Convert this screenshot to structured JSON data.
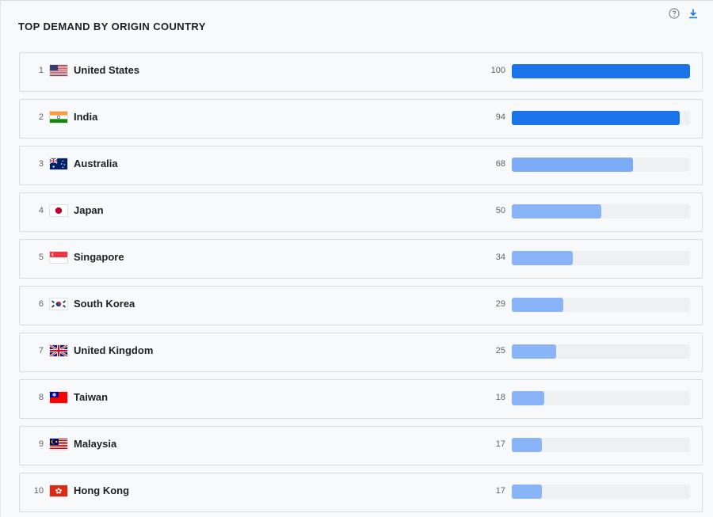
{
  "header": {
    "title": "TOP DEMAND BY ORIGIN COUNTRY",
    "help_icon": "question-circle-icon",
    "download_icon": "download-icon"
  },
  "max_value": 100,
  "colors": {
    "track": "#eff0f2",
    "bar_strong": "#1a73e8",
    "bar_medium": "#7baaf7",
    "bar_light": "#8ab4f8"
  },
  "rows": [
    {
      "rank": "1",
      "country": "United States",
      "flag": "us",
      "value": 100
    },
    {
      "rank": "2",
      "country": "India",
      "flag": "in",
      "value": 94
    },
    {
      "rank": "3",
      "country": "Australia",
      "flag": "au",
      "value": 68
    },
    {
      "rank": "4",
      "country": "Japan",
      "flag": "jp",
      "value": 50
    },
    {
      "rank": "5",
      "country": "Singapore",
      "flag": "sg",
      "value": 34
    },
    {
      "rank": "6",
      "country": "South Korea",
      "flag": "kr",
      "value": 29
    },
    {
      "rank": "7",
      "country": "United Kingdom",
      "flag": "gb",
      "value": 25
    },
    {
      "rank": "8",
      "country": "Taiwan",
      "flag": "tw",
      "value": 18
    },
    {
      "rank": "9",
      "country": "Malaysia",
      "flag": "my",
      "value": 17
    },
    {
      "rank": "10",
      "country": "Hong Kong",
      "flag": "hk",
      "value": 17
    }
  ]
}
